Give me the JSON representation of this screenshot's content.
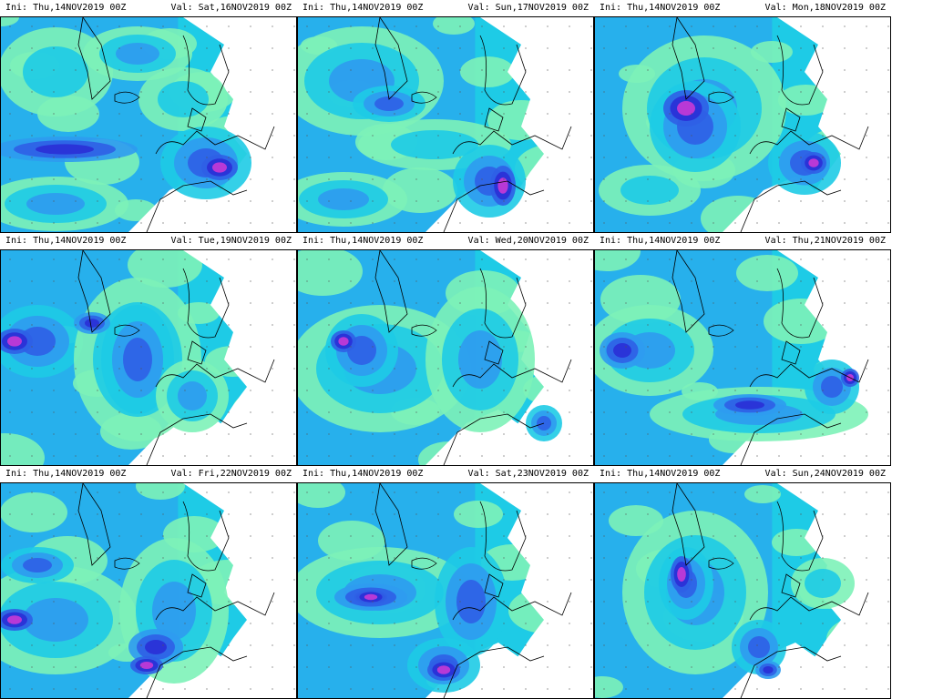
{
  "panels": [
    {
      "init": "Ini: Thu,14NOV2019 00Z",
      "valid": "Val: Sat,16NOV2019 00Z"
    },
    {
      "init": "Ini: Thu,14NOV2019 00Z",
      "valid": "Val: Sun,17NOV2019 00Z"
    },
    {
      "init": "Ini: Thu,14NOV2019 00Z",
      "valid": "Val: Mon,18NOV2019 00Z"
    },
    {
      "init": "Ini: Thu,14NOV2019 00Z",
      "valid": "Val: Tue,19NOV2019 00Z"
    },
    {
      "init": "Ini: Thu,14NOV2019 00Z",
      "valid": "Val: Wed,20NOV2019 00Z"
    },
    {
      "init": "Ini: Thu,14NOV2019 00Z",
      "valid": "Val: Thu,21NOV2019 00Z"
    },
    {
      "init": "Ini: Thu,14NOV2019 00Z",
      "valid": "Val: Fri,22NOV2019 00Z"
    },
    {
      "init": "Ini: Thu,14NOV2019 00Z",
      "valid": "Val: Sat,23NOV2019 00Z"
    },
    {
      "init": "Ini: Thu,14NOV2019 00Z",
      "valid": "Val: Sun,24NOV2019 00Z"
    }
  ],
  "colors": {
    "light_green": "#7df2b8",
    "cyan": "#1ecbe6",
    "sky_blue": "#2f9bf0",
    "blue": "#2f5fe6",
    "deep_blue": "#2a2fd6",
    "violet": "#6b2fd6",
    "magenta": "#c83ad6"
  }
}
